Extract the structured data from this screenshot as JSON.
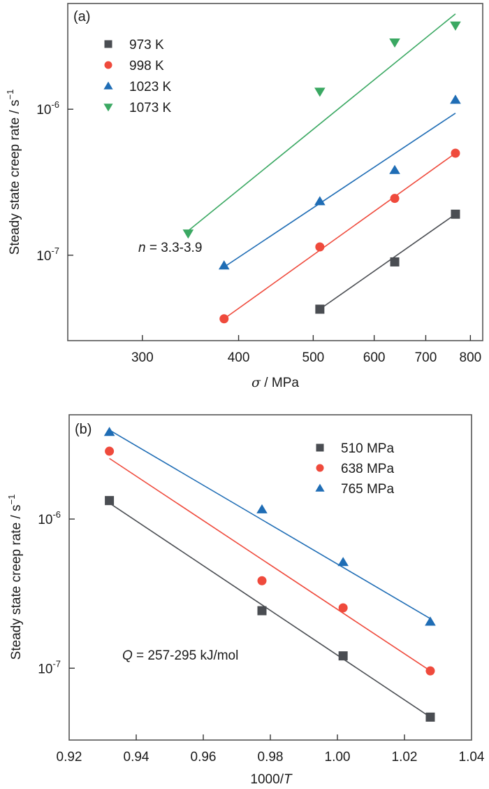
{
  "chart_data": [
    {
      "type": "scatter",
      "panel_label": "(a)",
      "title": "",
      "xlabel_symbol": "σ",
      "xlabel_unit": " / MPa",
      "ylabel": "Steady state creep rate / s",
      "ylabel_superscript": "−1",
      "xscale": "log",
      "yscale": "log",
      "xlim": [
        240,
        830
      ],
      "ylim": [
        2.6e-08,
        5.3e-06
      ],
      "xticks": [
        300,
        400,
        500,
        600,
        700,
        800
      ],
      "xtick_labels": [
        "300",
        "400",
        "500",
        "600",
        "700",
        "800"
      ],
      "yticks": [
        1e-06,
        1e-07
      ],
      "ytick_labels": [
        {
          "base": "10",
          "exp": "-6"
        },
        {
          "base": "10",
          "exp": "-7"
        }
      ],
      "grid": false,
      "legend_position": "top-left",
      "annotation": {
        "italic": "n",
        "text": " = 3.3-3.9"
      },
      "series": [
        {
          "name": "973 K",
          "marker": "square",
          "color": "#4a4d52",
          "x": [
            510,
            638,
            765
          ],
          "y": [
            4.27e-08,
            9e-08,
            1.91e-07
          ],
          "fit": {
            "x": [
              510,
              765
            ],
            "y": [
              4.27e-08,
              1.91e-07
            ]
          }
        },
        {
          "name": "998 K",
          "marker": "circle",
          "color": "#ef4a3c",
          "x": [
            383,
            510,
            638,
            765
          ],
          "y": [
            3.67e-08,
            1.14e-07,
            2.45e-07,
            5e-07
          ],
          "fit": {
            "x": [
              383,
              765
            ],
            "y": [
              3.67e-08,
              5e-07
            ]
          }
        },
        {
          "name": "1023 K",
          "marker": "triangle-up",
          "color": "#1f6db5",
          "x": [
            383,
            510,
            638,
            765
          ],
          "y": [
            8.5e-08,
            2.34e-07,
            3.83e-07,
            1.16e-06
          ],
          "fit": {
            "x": [
              383,
              765
            ],
            "y": [
              8.3e-08,
              9.4e-07
            ]
          }
        },
        {
          "name": "1073 K",
          "marker": "triangle-down",
          "color": "#3aa862",
          "x": [
            344,
            510,
            638,
            765
          ],
          "y": [
            1.41e-07,
            1.32e-06,
            2.87e-06,
            3.75e-06
          ],
          "fit": {
            "x": [
              344,
              765
            ],
            "y": [
              1.47e-07,
              4.5e-06
            ]
          }
        }
      ]
    },
    {
      "type": "scatter",
      "panel_label": "(b)",
      "title": "",
      "xlabel_text": "1000/",
      "xlabel_symbol": "T",
      "ylabel": "Steady state creep rate / s",
      "ylabel_superscript": "−1",
      "xscale": "linear",
      "yscale": "log",
      "xlim": [
        0.92,
        1.04
      ],
      "ylim": [
        3.3e-08,
        5e-06
      ],
      "xticks": [
        0.92,
        0.94,
        0.96,
        0.98,
        1.0,
        1.02,
        1.04
      ],
      "xtick_labels": [
        "0.92",
        "0.94",
        "0.96",
        "0.98",
        "1.00",
        "1.02",
        "1.04"
      ],
      "yticks": [
        1e-06,
        1e-07
      ],
      "ytick_labels": [
        {
          "base": "10",
          "exp": "-6"
        },
        {
          "base": "10",
          "exp": "-7"
        }
      ],
      "grid": false,
      "legend_position": "top-right",
      "annotation": {
        "italic": "Q",
        "text": " = 257-295 kJ/mol"
      },
      "series": [
        {
          "name": "510 MPa",
          "marker": "square",
          "color": "#4a4d52",
          "x": [
            0.932,
            0.9775,
            1.0017,
            1.0277
          ],
          "y": [
            1.33e-06,
            2.43e-07,
            1.21e-07,
            4.7e-08
          ],
          "fit": {
            "x": [
              0.932,
              1.0277
            ],
            "y": [
              1.28e-06,
              4.7e-08
            ]
          }
        },
        {
          "name": "638 MPa",
          "marker": "circle",
          "color": "#ef4a3c",
          "x": [
            0.932,
            0.9775,
            1.0017,
            1.0277
          ],
          "y": [
            2.85e-06,
            3.86e-07,
            2.54e-07,
            9.6e-08
          ],
          "fit": {
            "x": [
              0.932,
              1.0277
            ],
            "y": [
              2.55e-06,
              9.6e-08
            ]
          }
        },
        {
          "name": "765 MPa",
          "marker": "triangle-up",
          "color": "#1f6db5",
          "x": [
            0.932,
            0.9775,
            1.0017,
            1.0277
          ],
          "y": [
            3.83e-06,
            1.16e-06,
            5.14e-07,
            2.05e-07
          ],
          "fit": {
            "x": [
              0.932,
              1.0277
            ],
            "y": [
              3.95e-06,
              2.15e-07
            ]
          }
        }
      ]
    }
  ]
}
